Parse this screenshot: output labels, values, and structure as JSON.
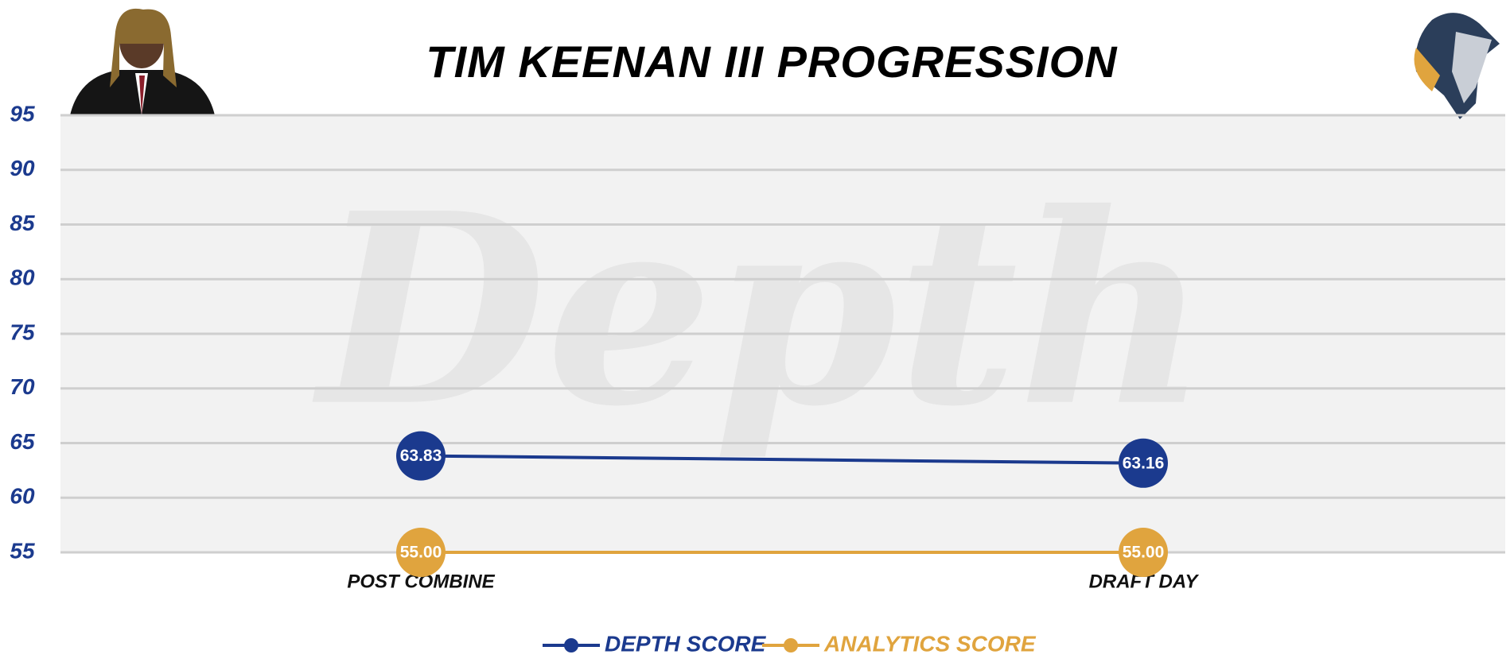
{
  "chart_data": {
    "type": "line",
    "title": "TIM KEENAN III PROGRESSION",
    "watermark": "Depth",
    "categories": [
      "POST COMBINE",
      "DRAFT DAY"
    ],
    "series": [
      {
        "name": "DEPTH SCORE",
        "color": "#1b3a8e",
        "values": [
          63.83,
          63.16
        ],
        "value_labels": [
          "63.83",
          "63.16"
        ]
      },
      {
        "name": "ANALYTICS SCORE",
        "color": "#e0a43e",
        "values": [
          55.0,
          55.0
        ],
        "value_labels": [
          "55.00",
          "55.00"
        ]
      }
    ],
    "ylim": [
      55,
      95
    ],
    "yticks": [
      55,
      60,
      65,
      70,
      75,
      80,
      85,
      90,
      95
    ],
    "grid": true
  }
}
